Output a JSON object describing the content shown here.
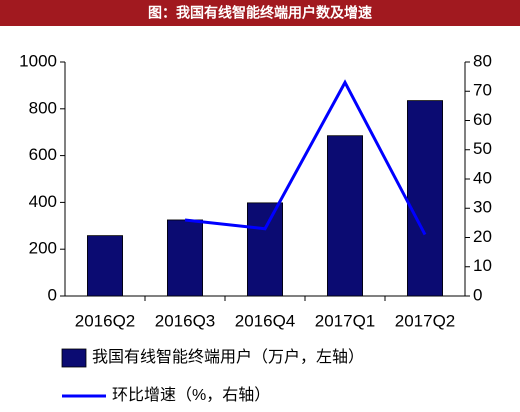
{
  "chart_data": {
    "type": "bar",
    "title": "图：我国有线智能终端用户数及增速",
    "categories": [
      "2016Q2",
      "2016Q3",
      "2016Q4",
      "2017Q1",
      "2017Q2"
    ],
    "series": [
      {
        "name": "我国有线智能终端用户（万户，左轴）",
        "type": "bar",
        "color": "#0b0b72",
        "values": [
          258,
          325,
          398,
          685,
          835
        ]
      },
      {
        "name": "环比增速（%，右轴）",
        "type": "line",
        "axis": "y2",
        "color": "#0000ff",
        "values": [
          null,
          26,
          23,
          73,
          21
        ]
      }
    ],
    "ylim": [
      0,
      1000
    ],
    "yticks": [
      0,
      200,
      400,
      600,
      800,
      1000
    ],
    "y2lim": [
      0,
      80
    ],
    "y2ticks": [
      0,
      10,
      20,
      30,
      40,
      50,
      60,
      70,
      80
    ],
    "grid": false
  }
}
